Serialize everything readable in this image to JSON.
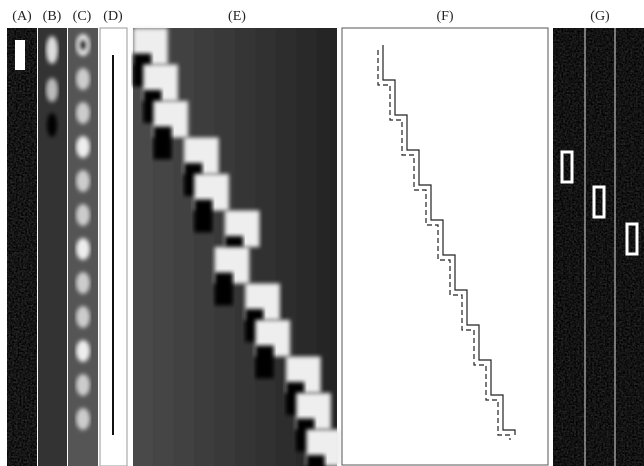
{
  "panels": [
    {
      "label": "(A)"
    },
    {
      "label": "(B)"
    },
    {
      "label": "(C)"
    },
    {
      "label": "(D)"
    },
    {
      "label": "(E)"
    },
    {
      "label": "(F)"
    },
    {
      "label": "(G)"
    }
  ]
}
